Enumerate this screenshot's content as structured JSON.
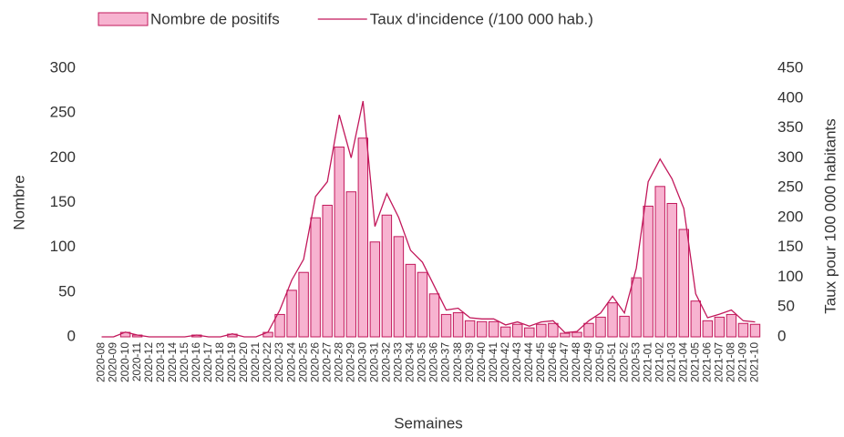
{
  "chart_data": {
    "type": "bar_line",
    "x_label": "Semaines",
    "y_label": "Nombre",
    "y2_label": "Taux pour 100 000 habitants",
    "categories": [
      "2020-08",
      "2020-09",
      "2020-10",
      "2020-11",
      "2020-12",
      "2020-13",
      "2020-14",
      "2020-15",
      "2020-16",
      "2020-17",
      "2020-18",
      "2020-19",
      "2020-20",
      "2020-21",
      "2020-22",
      "2020-23",
      "2020-24",
      "2020-25",
      "2020-26",
      "2020-27",
      "2020-28",
      "2020-29",
      "2020-30",
      "2020-31",
      "2020-32",
      "2020-33",
      "2020-34",
      "2020-35",
      "2020-36",
      "2020-37",
      "2020-38",
      "2020-39",
      "2020-40",
      "2020-41",
      "2020-42",
      "2020-43",
      "2020-44",
      "2020-45",
      "2020-46",
      "2020-47",
      "2020-48",
      "2020-49",
      "2020-50",
      "2020-51",
      "2020-52",
      "2020-53",
      "2021-01",
      "2021-02",
      "2021-03",
      "2021-04",
      "2021-05",
      "2021-06",
      "2021-07",
      "2021-08",
      "2021-09",
      "2021-10"
    ],
    "series": [
      {
        "name": "Nombre de positifs",
        "kind": "bar",
        "color": "#f7b3d0",
        "edge": "#c2185b",
        "values": [
          0,
          0,
          5,
          2,
          0,
          0,
          0,
          0,
          2,
          0,
          0,
          3,
          0,
          0,
          5,
          25,
          52,
          72,
          133,
          147,
          212,
          162,
          222,
          106,
          136,
          112,
          81,
          72,
          48,
          25,
          27,
          18,
          17,
          17,
          11,
          14,
          10,
          14,
          15,
          4,
          5,
          15,
          22,
          38,
          23,
          66,
          146,
          168,
          149,
          120,
          40,
          18,
          22,
          25,
          15,
          14
        ]
      },
      {
        "name": "Taux d'incidence (/100 000 hab.)",
        "kind": "line",
        "axis": "y2",
        "color": "#c2185b",
        "values": [
          0,
          0,
          8,
          3,
          0,
          0,
          0,
          0,
          3,
          0,
          0,
          5,
          0,
          0,
          8,
          45,
          95,
          130,
          235,
          260,
          372,
          300,
          395,
          185,
          240,
          200,
          145,
          125,
          85,
          45,
          48,
          32,
          30,
          30,
          20,
          25,
          18,
          25,
          27,
          7,
          9,
          27,
          40,
          68,
          40,
          115,
          260,
          298,
          265,
          215,
          72,
          32,
          38,
          45,
          27,
          25
        ]
      }
    ],
    "ylim": [
      0,
      300
    ],
    "yticks": [
      0,
      50,
      100,
      150,
      200,
      250,
      300
    ],
    "y2lim": [
      0,
      450
    ],
    "y2ticks": [
      0,
      50,
      100,
      150,
      200,
      250,
      300,
      350,
      400,
      450
    ],
    "grid": false,
    "legend": "top"
  }
}
